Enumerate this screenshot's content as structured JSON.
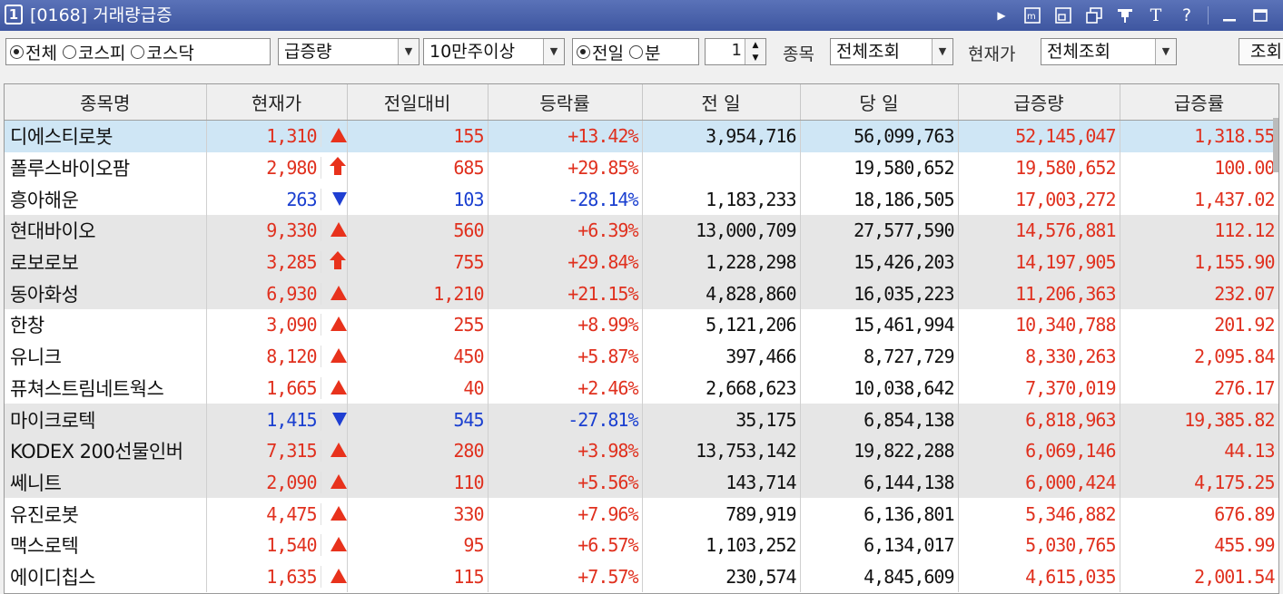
{
  "window": {
    "number": "1",
    "title": "[0168] 거래량급증"
  },
  "titlebar_icons": [
    "play-icon",
    "memo-icon",
    "restore-icon",
    "copy-icon",
    "pin-icon",
    "font-icon",
    "help-icon",
    "minimize-icon",
    "maximize-icon"
  ],
  "toolbar": {
    "market_options": [
      "전체",
      "코스피",
      "코스닥"
    ],
    "market_selected": "전체",
    "sort_select": "급증량",
    "volume_select": "10만주이상",
    "period_options": [
      "전일",
      "분"
    ],
    "period_selected": "전일",
    "minute_value": "1",
    "item_label": "종목",
    "item_select": "전체조회",
    "price_label": "현재가",
    "price_select": "전체조회",
    "query_button": "조회"
  },
  "table": {
    "columns": [
      "종목명",
      "현재가",
      "전일대비",
      "등락률",
      "전 일",
      "당 일",
      "급증량",
      "급증률"
    ],
    "rows": [
      {
        "name": "디에스티로봇",
        "price": "1,310",
        "dir": "up",
        "change": "155",
        "rate": "+13.42%",
        "prev": "3,954,716",
        "today": "56,099,763",
        "surge": "52,145,047",
        "surge_rate": "1,318.55",
        "style": "sel"
      },
      {
        "name": "폴루스바이오팜",
        "price": "2,980",
        "dir": "limit-up",
        "change": "685",
        "rate": "+29.85%",
        "prev": "",
        "today": "19,580,652",
        "surge": "19,580,652",
        "surge_rate": "100.00",
        "style": ""
      },
      {
        "name": "흥아해운",
        "price": "263",
        "dir": "down",
        "change": "103",
        "rate": "-28.14%",
        "prev": "1,183,233",
        "today": "18,186,505",
        "surge": "17,003,272",
        "surge_rate": "1,437.02",
        "style": ""
      },
      {
        "name": "현대바이오",
        "price": "9,330",
        "dir": "up",
        "change": "560",
        "rate": "+6.39%",
        "prev": "13,000,709",
        "today": "27,577,590",
        "surge": "14,576,881",
        "surge_rate": "112.12",
        "style": "gray"
      },
      {
        "name": "로보로보",
        "price": "3,285",
        "dir": "limit-up",
        "change": "755",
        "rate": "+29.84%",
        "prev": "1,228,298",
        "today": "15,426,203",
        "surge": "14,197,905",
        "surge_rate": "1,155.90",
        "style": "gray"
      },
      {
        "name": "동아화성",
        "price": "6,930",
        "dir": "up",
        "change": "1,210",
        "rate": "+21.15%",
        "prev": "4,828,860",
        "today": "16,035,223",
        "surge": "11,206,363",
        "surge_rate": "232.07",
        "style": "gray"
      },
      {
        "name": "한창",
        "price": "3,090",
        "dir": "up",
        "change": "255",
        "rate": "+8.99%",
        "prev": "5,121,206",
        "today": "15,461,994",
        "surge": "10,340,788",
        "surge_rate": "201.92",
        "style": ""
      },
      {
        "name": "유니크",
        "price": "8,120",
        "dir": "up",
        "change": "450",
        "rate": "+5.87%",
        "prev": "397,466",
        "today": "8,727,729",
        "surge": "8,330,263",
        "surge_rate": "2,095.84",
        "style": ""
      },
      {
        "name": "퓨쳐스트림네트웍스",
        "price": "1,665",
        "dir": "up",
        "change": "40",
        "rate": "+2.46%",
        "prev": "2,668,623",
        "today": "10,038,642",
        "surge": "7,370,019",
        "surge_rate": "276.17",
        "style": ""
      },
      {
        "name": "마이크로텍",
        "price": "1,415",
        "dir": "down",
        "change": "545",
        "rate": "-27.81%",
        "prev": "35,175",
        "today": "6,854,138",
        "surge": "6,818,963",
        "surge_rate": "19,385.82",
        "style": "gray"
      },
      {
        "name": "KODEX 200선물인버",
        "price": "7,315",
        "dir": "up",
        "change": "280",
        "rate": "+3.98%",
        "prev": "13,753,142",
        "today": "19,822,288",
        "surge": "6,069,146",
        "surge_rate": "44.13",
        "style": "gray"
      },
      {
        "name": "쎄니트",
        "price": "2,090",
        "dir": "up",
        "change": "110",
        "rate": "+5.56%",
        "prev": "143,714",
        "today": "6,144,138",
        "surge": "6,000,424",
        "surge_rate": "4,175.25",
        "style": "gray"
      },
      {
        "name": "유진로봇",
        "price": "4,475",
        "dir": "up",
        "change": "330",
        "rate": "+7.96%",
        "prev": "789,919",
        "today": "6,136,801",
        "surge": "5,346,882",
        "surge_rate": "676.89",
        "style": ""
      },
      {
        "name": "맥스로텍",
        "price": "1,540",
        "dir": "up",
        "change": "95",
        "rate": "+6.57%",
        "prev": "1,103,252",
        "today": "6,134,017",
        "surge": "5,030,765",
        "surge_rate": "455.99",
        "style": ""
      },
      {
        "name": "에이디칩스",
        "price": "1,635",
        "dir": "up",
        "change": "115",
        "rate": "+7.57%",
        "prev": "230,574",
        "today": "4,845,609",
        "surge": "4,615,035",
        "surge_rate": "2,001.54",
        "style": ""
      }
    ]
  },
  "colors": {
    "up": "#e0301e",
    "down": "#1a3fd0",
    "selected_row": "#cfe6f5",
    "group_row": "#e6e6e6",
    "titlebar": "#3e56a0"
  }
}
